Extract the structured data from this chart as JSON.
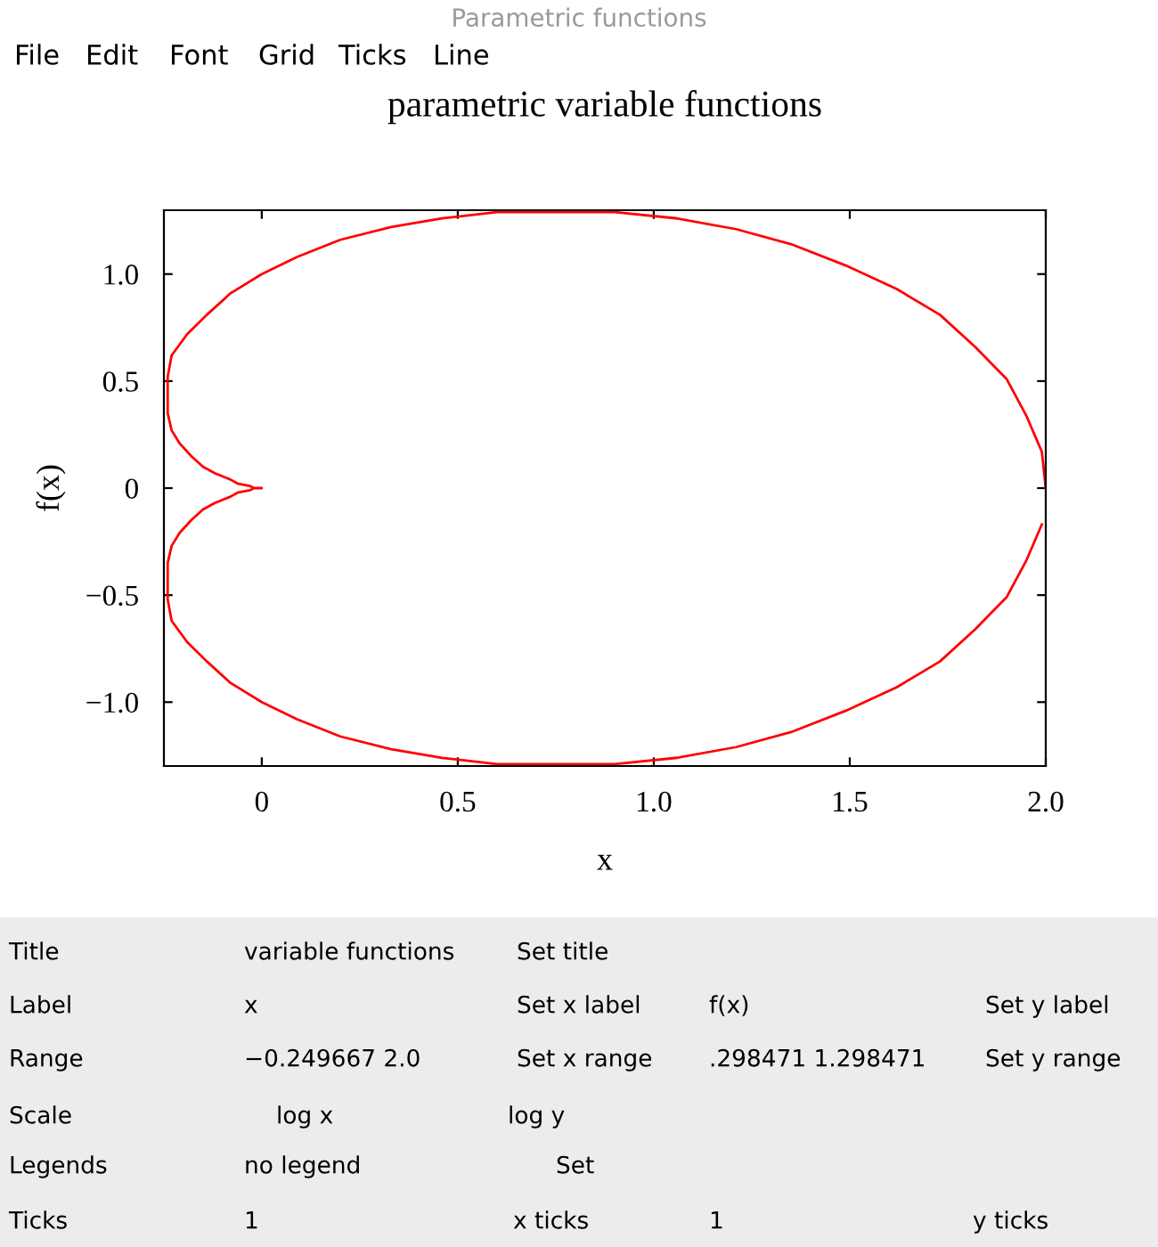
{
  "chart_data": [
    {
      "type": "line",
      "title": "parametric variable functions",
      "xlabel": "x",
      "ylabel": "f(x)",
      "xlim": [
        -0.249667,
        2.0
      ],
      "ylim": [
        -1.298471,
        1.298471
      ],
      "xticks": [
        0,
        0.5,
        {
          "value": 1.0,
          "label": "1.0"
        },
        1.5,
        {
          "value": 2.0,
          "label": "2.0"
        }
      ],
      "yticks": [
        {
          "value": -1.0,
          "label": "−1.0"
        },
        {
          "value": -0.5,
          "label": "−0.5"
        },
        0,
        0.5,
        {
          "value": 1.0,
          "label": "1.0"
        }
      ],
      "grid": false,
      "legend": false,
      "marker": "none",
      "line_style": "solid",
      "series": [
        {
          "color": "#ff0000",
          "x": [
            2.0,
            1.99,
            1.95,
            1.9,
            1.82,
            1.73,
            1.62,
            1.49,
            1.35,
            1.21,
            1.06,
            0.9,
            0.75,
            0.6,
            0.46,
            0.33,
            0.2,
            0.09,
            0.0,
            -0.08,
            -0.14,
            -0.19,
            -0.23,
            -0.24,
            -0.24,
            -0.24,
            -0.23,
            -0.21,
            -0.18,
            -0.15,
            -0.12,
            -0.08,
            -0.06,
            -0.03,
            -0.02,
            0.0,
            -0.02,
            -0.03,
            -0.06,
            -0.08,
            -0.12,
            -0.15,
            -0.18,
            -0.21,
            -0.23,
            -0.24,
            -0.24,
            -0.24,
            -0.23,
            -0.19,
            -0.14,
            -0.08,
            0.0,
            0.09,
            0.2,
            0.33,
            0.46,
            0.6,
            0.75,
            0.9,
            1.06,
            1.21,
            1.35,
            1.49,
            1.62,
            1.73,
            1.82,
            1.9,
            1.95,
            1.99
          ],
          "values": [
            0.0,
            0.17,
            0.34,
            0.51,
            0.66,
            0.81,
            0.93,
            1.04,
            1.14,
            1.21,
            1.26,
            1.29,
            1.29,
            1.29,
            1.26,
            1.22,
            1.16,
            1.08,
            1.0,
            0.91,
            0.81,
            0.72,
            0.62,
            0.52,
            0.43,
            0.35,
            0.27,
            0.21,
            0.15,
            0.1,
            0.07,
            0.04,
            0.02,
            0.01,
            0.0,
            0.0,
            0.0,
            -0.01,
            -0.02,
            -0.04,
            -0.07,
            -0.1,
            -0.15,
            -0.21,
            -0.27,
            -0.35,
            -0.43,
            -0.52,
            -0.62,
            -0.72,
            -0.81,
            -0.91,
            -1.0,
            -1.08,
            -1.16,
            -1.22,
            -1.26,
            -1.29,
            -1.29,
            -1.29,
            -1.26,
            -1.21,
            -1.14,
            -1.04,
            -0.93,
            -0.81,
            -0.66,
            -0.51,
            -0.34,
            -0.17
          ]
        }
      ]
    },
    {
      "type": "other",
      "title": "Parametric functions",
      "annotations": [
        "File",
        "Edit",
        "Font",
        "Grid",
        "Ticks",
        "Line",
        "Title",
        "variable functions",
        "Set title",
        "Label",
        "x",
        "Set x label",
        "f(x)",
        "Set y label",
        "Range",
        "−0.249667 2.0",
        "Set x range",
        ".298471 1.298471",
        "Set y range",
        "Scale",
        "log x",
        "log y",
        "Legends",
        "no legend",
        "Set",
        "Ticks",
        "1",
        "x ticks",
        "1",
        "y ticks"
      ]
    }
  ]
}
